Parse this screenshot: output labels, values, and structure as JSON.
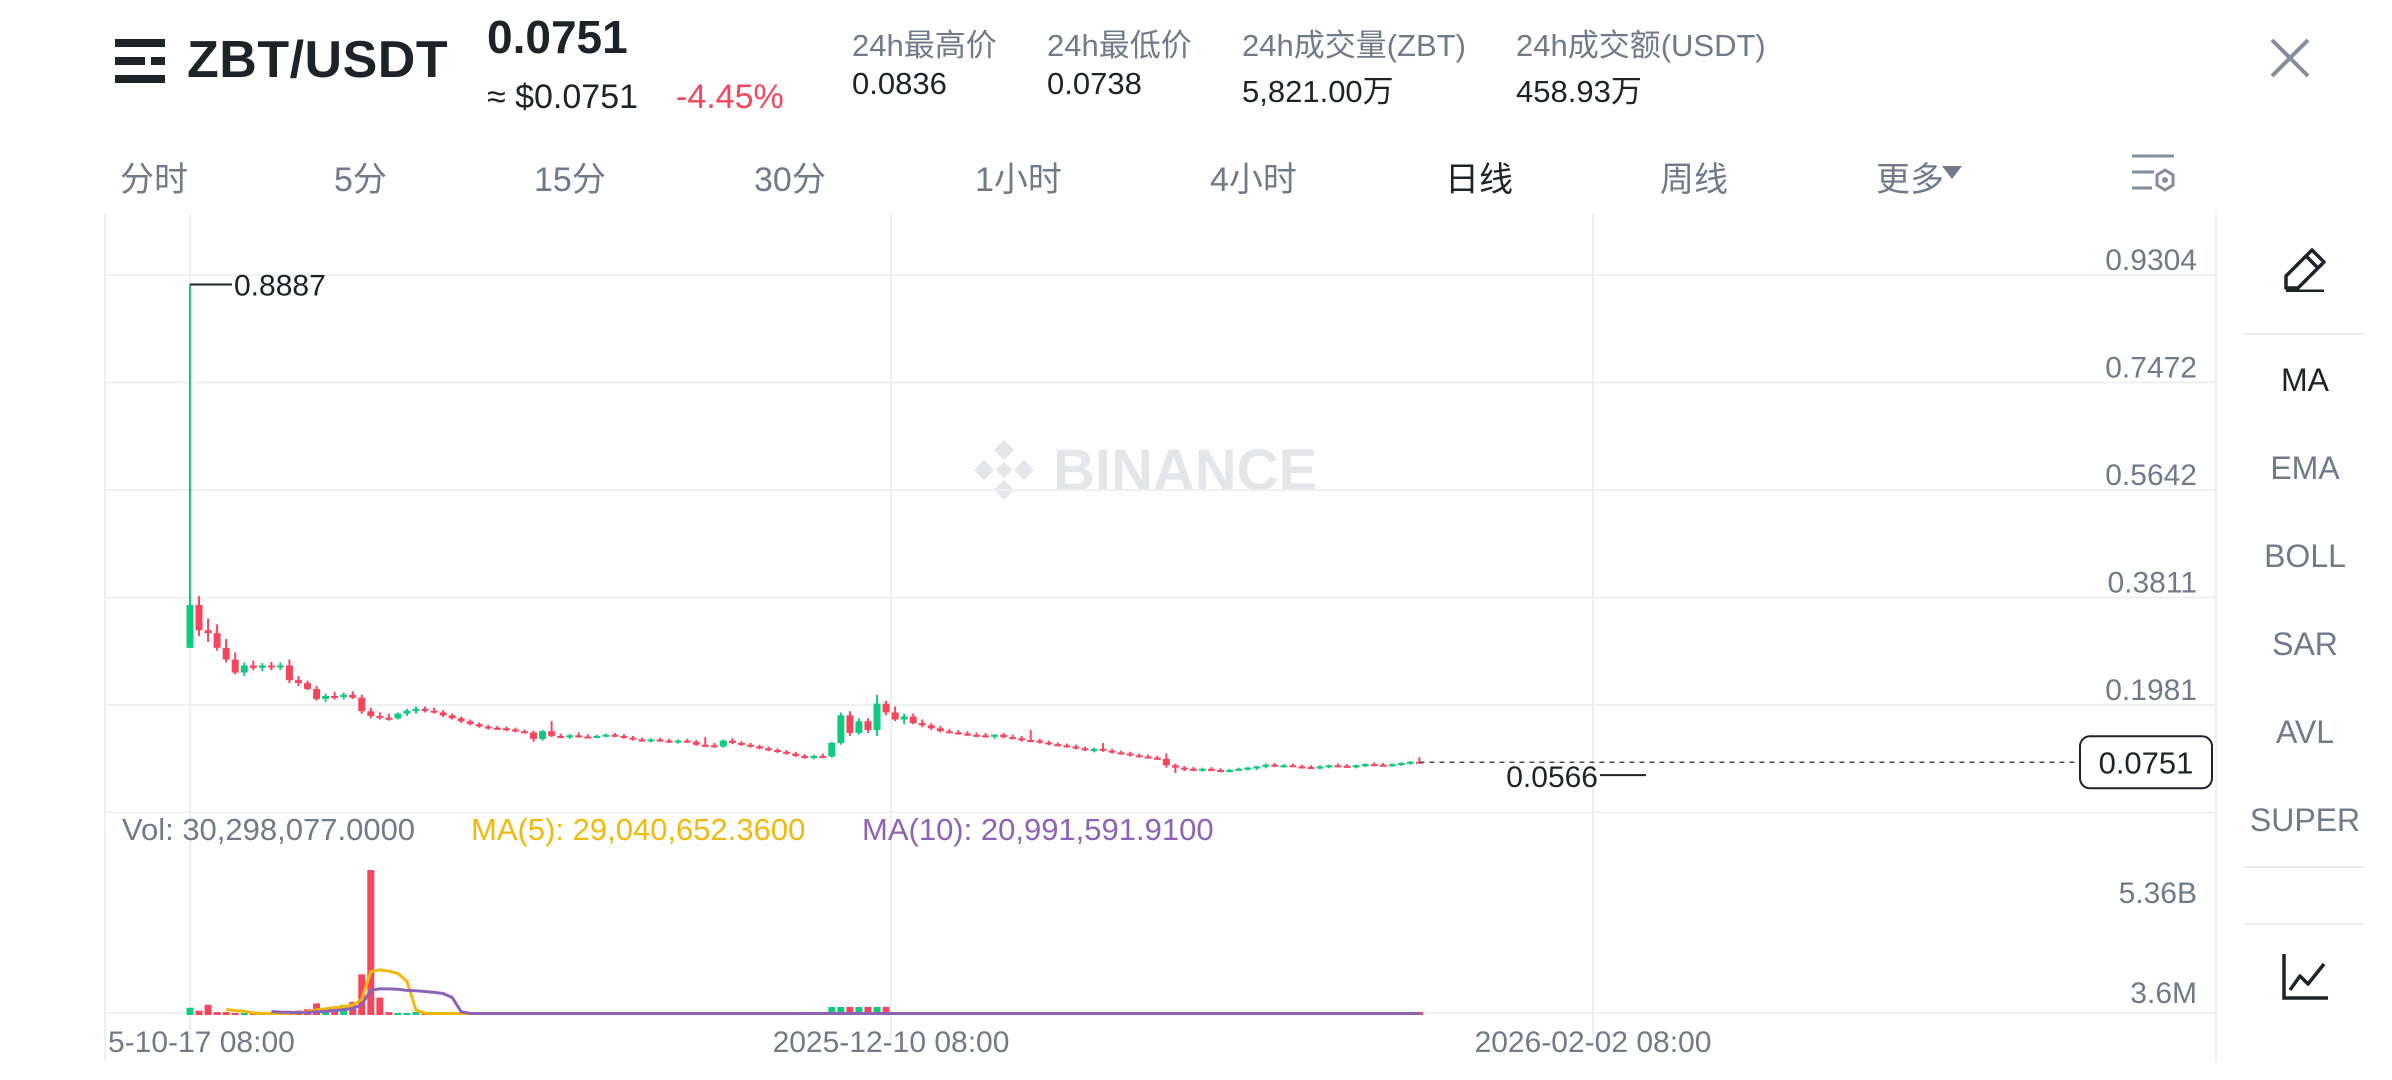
{
  "header": {
    "pair": "ZBT/USDT",
    "price": "0.0751",
    "approx_usd": "≈ $0.0751",
    "change": "-4.45%",
    "stats": [
      {
        "label": "24h最高价",
        "value": "0.0836"
      },
      {
        "label": "24h最低价",
        "value": "0.0738"
      },
      {
        "label": "24h成交量(ZBT)",
        "value": "5,821.00万"
      },
      {
        "label": "24h成交额(USDT)",
        "value": "458.93万"
      }
    ]
  },
  "tabs": [
    "分时",
    "5分",
    "15分",
    "30分",
    "1小时",
    "4小时",
    "日线",
    "周线",
    "更多"
  ],
  "active_tab": "日线",
  "indicators": [
    "MA",
    "EMA",
    "BOLL",
    "SAR",
    "AVL",
    "SUPER"
  ],
  "active_indicator": "MA",
  "colors": {
    "up": "#0ecb81",
    "down": "#f6465d",
    "ma5": "#f0b90b",
    "ma10": "#8e62b5",
    "grid": "#eef0f2",
    "axis_text": "#707a8a",
    "watermark": "#e6e8ea"
  },
  "icons": {
    "menu": "menu-icon",
    "close": "close-icon",
    "settings": "chart-settings-icon",
    "pencil": "pencil-icon",
    "trend": "trend-chart-icon"
  },
  "watermark": "BINANCE",
  "volume_legend": {
    "vol": "Vol: 30,298,077.0000",
    "ma5": "MA(5): 29,040,652.3600",
    "ma10": "MA(10): 20,991,591.9100"
  },
  "chart_data": {
    "type": "candlestick",
    "price_axis_ticks": [
      "0.9304",
      "0.7472",
      "0.5642",
      "0.3811",
      "0.1981"
    ],
    "price_axis_top_value": 0.9304,
    "price_axis_step": 0.18305,
    "last_price": "0.0751",
    "last_price_value": 0.0751,
    "high_label": "0.8887",
    "high_value": 0.8887,
    "low_label": "0.0566",
    "low_value": 0.0566,
    "volume_axis_ticks": [
      "5.36B",
      "3.6M"
    ],
    "x_tick_labels": [
      "5-10-17 08:00",
      "2025-12-10 08:00",
      "2026-02-02 08:00"
    ],
    "candles": [
      [
        0.27,
        0.889,
        0.27,
        0.343
      ],
      [
        0.343,
        0.358,
        0.29,
        0.3
      ],
      [
        0.3,
        0.32,
        0.28,
        0.295
      ],
      [
        0.295,
        0.31,
        0.265,
        0.27
      ],
      [
        0.27,
        0.285,
        0.245,
        0.25
      ],
      [
        0.25,
        0.262,
        0.225,
        0.228
      ],
      [
        0.228,
        0.245,
        0.222,
        0.24
      ],
      [
        0.24,
        0.248,
        0.232,
        0.236
      ],
      [
        0.236,
        0.244,
        0.23,
        0.24
      ],
      [
        0.24,
        0.246,
        0.232,
        0.238
      ],
      [
        0.238,
        0.245,
        0.232,
        0.24
      ],
      [
        0.24,
        0.25,
        0.21,
        0.215
      ],
      [
        0.215,
        0.222,
        0.205,
        0.21
      ],
      [
        0.21,
        0.214,
        0.198,
        0.2
      ],
      [
        0.2,
        0.205,
        0.18,
        0.183
      ],
      [
        0.183,
        0.192,
        0.178,
        0.188
      ],
      [
        0.188,
        0.195,
        0.182,
        0.186
      ],
      [
        0.186,
        0.194,
        0.182,
        0.19
      ],
      [
        0.19,
        0.196,
        0.183,
        0.185
      ],
      [
        0.185,
        0.19,
        0.158,
        0.162
      ],
      [
        0.162,
        0.168,
        0.15,
        0.154
      ],
      [
        0.154,
        0.16,
        0.148,
        0.151
      ],
      [
        0.151,
        0.158,
        0.146,
        0.15
      ],
      [
        0.15,
        0.16,
        0.148,
        0.158
      ],
      [
        0.158,
        0.166,
        0.154,
        0.163
      ],
      [
        0.163,
        0.17,
        0.158,
        0.166
      ],
      [
        0.166,
        0.17,
        0.16,
        0.163
      ],
      [
        0.163,
        0.168,
        0.158,
        0.16
      ],
      [
        0.16,
        0.164,
        0.152,
        0.155
      ],
      [
        0.155,
        0.158,
        0.148,
        0.15
      ],
      [
        0.15,
        0.153,
        0.142,
        0.145
      ],
      [
        0.145,
        0.148,
        0.138,
        0.14
      ],
      [
        0.14,
        0.143,
        0.134,
        0.136
      ],
      [
        0.136,
        0.139,
        0.131,
        0.134
      ],
      [
        0.134,
        0.137,
        0.13,
        0.133
      ],
      [
        0.133,
        0.136,
        0.128,
        0.131
      ],
      [
        0.131,
        0.134,
        0.126,
        0.128
      ],
      [
        0.128,
        0.131,
        0.124,
        0.126
      ],
      [
        0.126,
        0.129,
        0.11,
        0.115
      ],
      [
        0.115,
        0.13,
        0.112,
        0.128
      ],
      [
        0.128,
        0.145,
        0.118,
        0.12
      ],
      [
        0.12,
        0.124,
        0.116,
        0.118
      ],
      [
        0.118,
        0.123,
        0.115,
        0.121
      ],
      [
        0.121,
        0.126,
        0.117,
        0.119
      ],
      [
        0.119,
        0.123,
        0.116,
        0.118
      ],
      [
        0.118,
        0.122,
        0.116,
        0.12
      ],
      [
        0.12,
        0.124,
        0.118,
        0.122
      ],
      [
        0.122,
        0.125,
        0.118,
        0.12
      ],
      [
        0.12,
        0.123,
        0.115,
        0.117
      ],
      [
        0.117,
        0.12,
        0.112,
        0.114
      ],
      [
        0.114,
        0.117,
        0.11,
        0.112
      ],
      [
        0.112,
        0.116,
        0.109,
        0.114
      ],
      [
        0.114,
        0.117,
        0.11,
        0.112
      ],
      [
        0.112,
        0.115,
        0.108,
        0.11
      ],
      [
        0.11,
        0.114,
        0.107,
        0.112
      ],
      [
        0.112,
        0.115,
        0.108,
        0.11
      ],
      [
        0.11,
        0.113,
        0.103,
        0.105
      ],
      [
        0.105,
        0.118,
        0.101,
        0.104
      ],
      [
        0.104,
        0.108,
        0.1,
        0.102
      ],
      [
        0.102,
        0.114,
        0.1,
        0.112
      ],
      [
        0.112,
        0.116,
        0.106,
        0.108
      ],
      [
        0.108,
        0.111,
        0.103,
        0.105
      ],
      [
        0.105,
        0.108,
        0.1,
        0.102
      ],
      [
        0.102,
        0.105,
        0.097,
        0.099
      ],
      [
        0.099,
        0.102,
        0.094,
        0.096
      ],
      [
        0.096,
        0.099,
        0.091,
        0.093
      ],
      [
        0.093,
        0.096,
        0.088,
        0.09
      ],
      [
        0.09,
        0.093,
        0.084,
        0.086
      ],
      [
        0.086,
        0.089,
        0.081,
        0.083
      ],
      [
        0.083,
        0.088,
        0.08,
        0.086
      ],
      [
        0.086,
        0.09,
        0.082,
        0.085
      ],
      [
        0.085,
        0.11,
        0.083,
        0.108
      ],
      [
        0.108,
        0.16,
        0.105,
        0.155
      ],
      [
        0.155,
        0.162,
        0.12,
        0.125
      ],
      [
        0.125,
        0.15,
        0.122,
        0.145
      ],
      [
        0.145,
        0.15,
        0.125,
        0.13
      ],
      [
        0.13,
        0.19,
        0.12,
        0.175
      ],
      [
        0.175,
        0.18,
        0.155,
        0.16
      ],
      [
        0.16,
        0.17,
        0.145,
        0.148
      ],
      [
        0.148,
        0.158,
        0.14,
        0.153
      ],
      [
        0.153,
        0.158,
        0.14,
        0.142
      ],
      [
        0.142,
        0.148,
        0.135,
        0.138
      ],
      [
        0.138,
        0.142,
        0.13,
        0.133
      ],
      [
        0.133,
        0.137,
        0.126,
        0.128
      ],
      [
        0.128,
        0.132,
        0.124,
        0.126
      ],
      [
        0.126,
        0.13,
        0.122,
        0.124
      ],
      [
        0.124,
        0.128,
        0.12,
        0.122
      ],
      [
        0.122,
        0.126,
        0.118,
        0.121
      ],
      [
        0.121,
        0.125,
        0.117,
        0.119
      ],
      [
        0.119,
        0.123,
        0.115,
        0.122
      ],
      [
        0.122,
        0.125,
        0.116,
        0.118
      ],
      [
        0.118,
        0.122,
        0.114,
        0.116
      ],
      [
        0.116,
        0.12,
        0.11,
        0.113
      ],
      [
        0.113,
        0.13,
        0.11,
        0.112
      ],
      [
        0.112,
        0.115,
        0.107,
        0.109
      ],
      [
        0.109,
        0.112,
        0.104,
        0.106
      ],
      [
        0.106,
        0.109,
        0.102,
        0.104
      ],
      [
        0.104,
        0.107,
        0.1,
        0.102
      ],
      [
        0.102,
        0.105,
        0.097,
        0.099
      ],
      [
        0.099,
        0.102,
        0.094,
        0.096
      ],
      [
        0.096,
        0.1,
        0.092,
        0.098
      ],
      [
        0.098,
        0.108,
        0.093,
        0.095
      ],
      [
        0.095,
        0.098,
        0.09,
        0.092
      ],
      [
        0.092,
        0.095,
        0.088,
        0.09
      ],
      [
        0.09,
        0.093,
        0.085,
        0.087
      ],
      [
        0.087,
        0.09,
        0.083,
        0.085
      ],
      [
        0.085,
        0.088,
        0.081,
        0.083
      ],
      [
        0.083,
        0.086,
        0.079,
        0.081
      ],
      [
        0.081,
        0.09,
        0.066,
        0.07
      ],
      [
        0.07,
        0.073,
        0.057,
        0.066
      ],
      [
        0.066,
        0.069,
        0.06,
        0.064
      ],
      [
        0.064,
        0.067,
        0.06,
        0.062
      ],
      [
        0.062,
        0.066,
        0.059,
        0.064
      ],
      [
        0.064,
        0.067,
        0.06,
        0.062
      ],
      [
        0.062,
        0.065,
        0.058,
        0.06
      ],
      [
        0.06,
        0.064,
        0.058,
        0.062
      ],
      [
        0.062,
        0.066,
        0.06,
        0.064
      ],
      [
        0.064,
        0.067,
        0.061,
        0.066
      ],
      [
        0.066,
        0.069,
        0.062,
        0.068
      ],
      [
        0.068,
        0.073,
        0.065,
        0.071
      ],
      [
        0.071,
        0.074,
        0.067,
        0.069
      ],
      [
        0.069,
        0.072,
        0.066,
        0.07
      ],
      [
        0.07,
        0.073,
        0.067,
        0.068
      ],
      [
        0.068,
        0.071,
        0.065,
        0.067
      ],
      [
        0.067,
        0.07,
        0.064,
        0.066
      ],
      [
        0.066,
        0.07,
        0.063,
        0.068
      ],
      [
        0.068,
        0.071,
        0.065,
        0.07
      ],
      [
        0.07,
        0.073,
        0.067,
        0.069
      ],
      [
        0.069,
        0.072,
        0.066,
        0.068
      ],
      [
        0.068,
        0.071,
        0.065,
        0.07
      ],
      [
        0.07,
        0.073,
        0.067,
        0.072
      ],
      [
        0.072,
        0.075,
        0.068,
        0.071
      ],
      [
        0.071,
        0.074,
        0.068,
        0.07
      ],
      [
        0.07,
        0.073,
        0.067,
        0.072
      ],
      [
        0.072,
        0.075,
        0.069,
        0.074
      ],
      [
        0.074,
        0.077,
        0.071,
        0.076
      ],
      [
        0.076,
        0.084,
        0.073,
        0.0751
      ]
    ],
    "volume_ratio": [
      0.05,
      0.03,
      0.07,
      0.02,
      0.02,
      0.01,
      0.01,
      0.01,
      0.01,
      0.01,
      0.01,
      0.02,
      0.03,
      0.04,
      0.08,
      0.04,
      0.06,
      0.07,
      0.09,
      0.28,
      1.0,
      0.12,
      0.02,
      0.01,
      0.01
    ]
  }
}
